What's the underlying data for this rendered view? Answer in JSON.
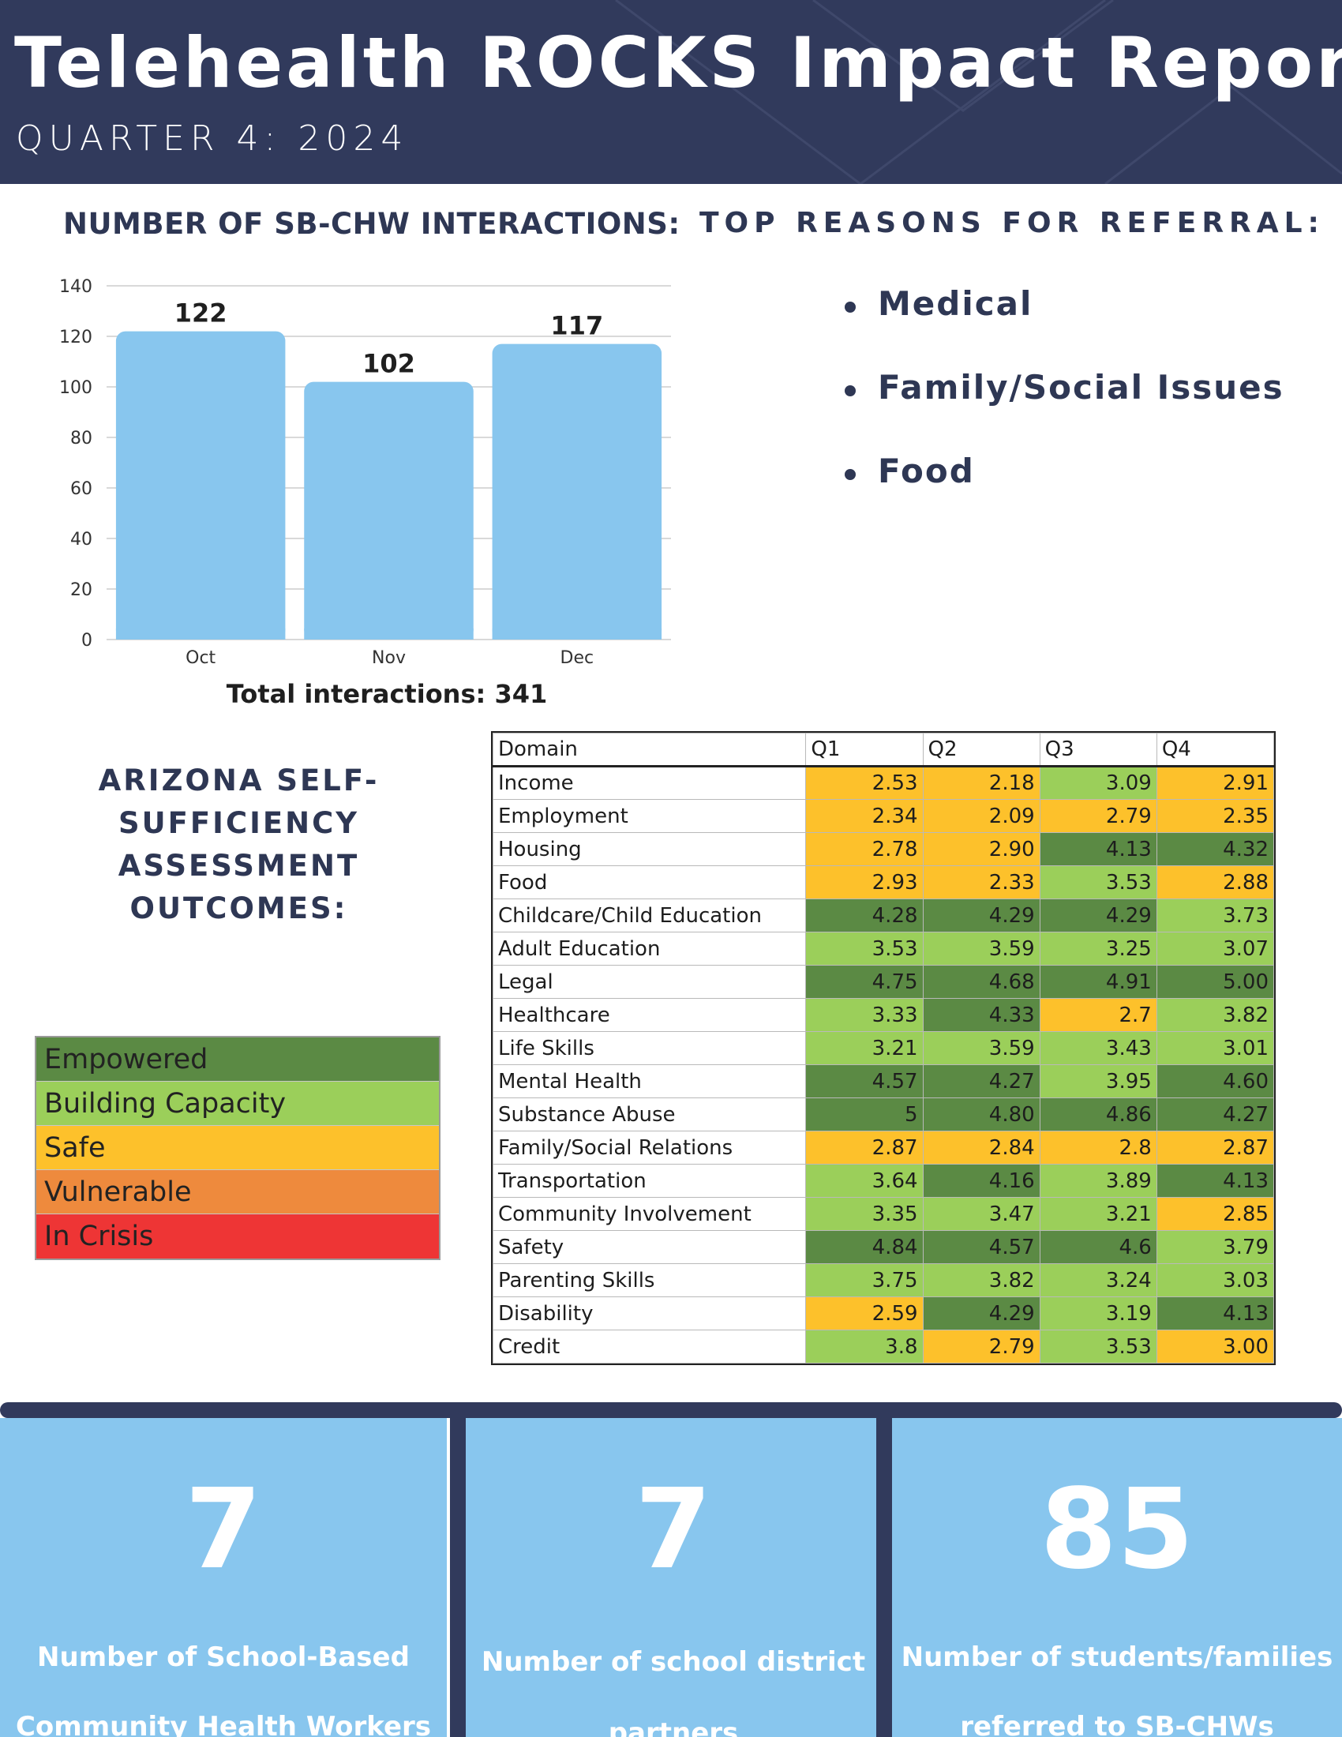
{
  "header": {
    "title": "Telehealth ROCKS Impact Report",
    "subtitle": "QUARTER 4: 2024"
  },
  "interactions": {
    "title": "NUMBER OF SB-CHW INTERACTIONS:",
    "total_label": "Total interactions: 341"
  },
  "chart_data": {
    "type": "bar",
    "categories": [
      "Oct",
      "Nov",
      "Dec"
    ],
    "values": [
      122,
      102,
      117
    ],
    "data_labels": [
      "122",
      "102",
      "117"
    ],
    "ylim": [
      0,
      140
    ],
    "yticks": [
      0,
      20,
      40,
      60,
      80,
      100,
      120,
      140
    ],
    "title": "",
    "xlabel": "",
    "ylabel": "",
    "grid": true,
    "bar_color": "#88c6ee"
  },
  "referral": {
    "title": "TOP REASONS FOR REFERRAL:",
    "items": [
      "Medical",
      "Family/Social Issues",
      "Food"
    ]
  },
  "assessment": {
    "title_lines": [
      "ARIZONA SELF-",
      "SUFFICIENCY",
      "ASSESSMENT OUTCOMES:"
    ],
    "legend": [
      {
        "label": "Empowered",
        "color": "#5b8a44"
      },
      {
        "label": "Building Capacity",
        "color": "#9bcf5a"
      },
      {
        "label": "Safe",
        "color": "#fdc12b"
      },
      {
        "label": "Vulnerable",
        "color": "#ee8a3d"
      },
      {
        "label": "In Crisis",
        "color": "#ee3535"
      }
    ],
    "table": {
      "headers": [
        "Domain",
        "Q1",
        "Q2",
        "Q3",
        "Q4"
      ],
      "rows": [
        {
          "domain": "Income",
          "values": [
            "2.53",
            "2.18",
            "3.09",
            "2.91"
          ],
          "levels": [
            "safe",
            "safe",
            "building",
            "safe"
          ]
        },
        {
          "domain": "Employment",
          "values": [
            "2.34",
            "2.09",
            "2.79",
            "2.35"
          ],
          "levels": [
            "safe",
            "safe",
            "safe",
            "safe"
          ]
        },
        {
          "domain": "Housing",
          "values": [
            "2.78",
            "2.90",
            "4.13",
            "4.32"
          ],
          "levels": [
            "safe",
            "safe",
            "empowered",
            "empowered"
          ]
        },
        {
          "domain": "Food",
          "values": [
            "2.93",
            "2.33",
            "3.53",
            "2.88"
          ],
          "levels": [
            "safe",
            "safe",
            "building",
            "safe"
          ]
        },
        {
          "domain": "Childcare/Child Education",
          "values": [
            "4.28",
            "4.29",
            "4.29",
            "3.73"
          ],
          "levels": [
            "empowered",
            "empowered",
            "empowered",
            "building"
          ]
        },
        {
          "domain": "Adult Education",
          "values": [
            "3.53",
            "3.59",
            "3.25",
            "3.07"
          ],
          "levels": [
            "building",
            "building",
            "building",
            "building"
          ]
        },
        {
          "domain": "Legal",
          "values": [
            "4.75",
            "4.68",
            "4.91",
            "5.00"
          ],
          "levels": [
            "empowered",
            "empowered",
            "empowered",
            "empowered"
          ]
        },
        {
          "domain": "Healthcare",
          "values": [
            "3.33",
            "4.33",
            "2.7",
            "3.82"
          ],
          "levels": [
            "building",
            "empowered",
            "safe",
            "building"
          ]
        },
        {
          "domain": "Life Skills",
          "values": [
            "3.21",
            "3.59",
            "3.43",
            "3.01"
          ],
          "levels": [
            "building",
            "building",
            "building",
            "building"
          ]
        },
        {
          "domain": "Mental Health",
          "values": [
            "4.57",
            "4.27",
            "3.95",
            "4.60"
          ],
          "levels": [
            "empowered",
            "empowered",
            "building",
            "empowered"
          ]
        },
        {
          "domain": "Substance Abuse",
          "values": [
            "5",
            "4.80",
            "4.86",
            "4.27"
          ],
          "levels": [
            "empowered",
            "empowered",
            "empowered",
            "empowered"
          ]
        },
        {
          "domain": "Family/Social Relations",
          "values": [
            "2.87",
            "2.84",
            "2.8",
            "2.87"
          ],
          "levels": [
            "safe",
            "safe",
            "safe",
            "safe"
          ]
        },
        {
          "domain": "Transportation",
          "values": [
            "3.64",
            "4.16",
            "3.89",
            "4.13"
          ],
          "levels": [
            "building",
            "empowered",
            "building",
            "empowered"
          ]
        },
        {
          "domain": "Community Involvement",
          "values": [
            "3.35",
            "3.47",
            "3.21",
            "2.85"
          ],
          "levels": [
            "building",
            "building",
            "building",
            "safe"
          ]
        },
        {
          "domain": "Safety",
          "values": [
            "4.84",
            "4.57",
            "4.6",
            "3.79"
          ],
          "levels": [
            "empowered",
            "empowered",
            "empowered",
            "building"
          ]
        },
        {
          "domain": "Parenting Skills",
          "values": [
            "3.75",
            "3.82",
            "3.24",
            "3.03"
          ],
          "levels": [
            "building",
            "building",
            "building",
            "building"
          ]
        },
        {
          "domain": "Disability",
          "values": [
            "2.59",
            "4.29",
            "3.19",
            "4.13"
          ],
          "levels": [
            "safe",
            "empowered",
            "building",
            "empowered"
          ]
        },
        {
          "domain": "Credit",
          "values": [
            "3.8",
            "2.79",
            "3.53",
            "3.00"
          ],
          "levels": [
            "building",
            "safe",
            "building",
            "safe"
          ]
        }
      ]
    }
  },
  "stats": [
    {
      "number": "7",
      "label_lines": [
        "Number of School-Based",
        "Community Health Workers"
      ]
    },
    {
      "number": "7",
      "label_lines": [
        "Number of school district",
        "partners"
      ]
    },
    {
      "number": "85",
      "label_lines": [
        "Number of students/families",
        "referred to SB-CHWs"
      ]
    }
  ],
  "colors": {
    "navy": "#313a5c",
    "light_blue": "#88c6ee",
    "empowered": "#5b8a44",
    "building": "#9bcf5a",
    "safe": "#fdc12b"
  }
}
